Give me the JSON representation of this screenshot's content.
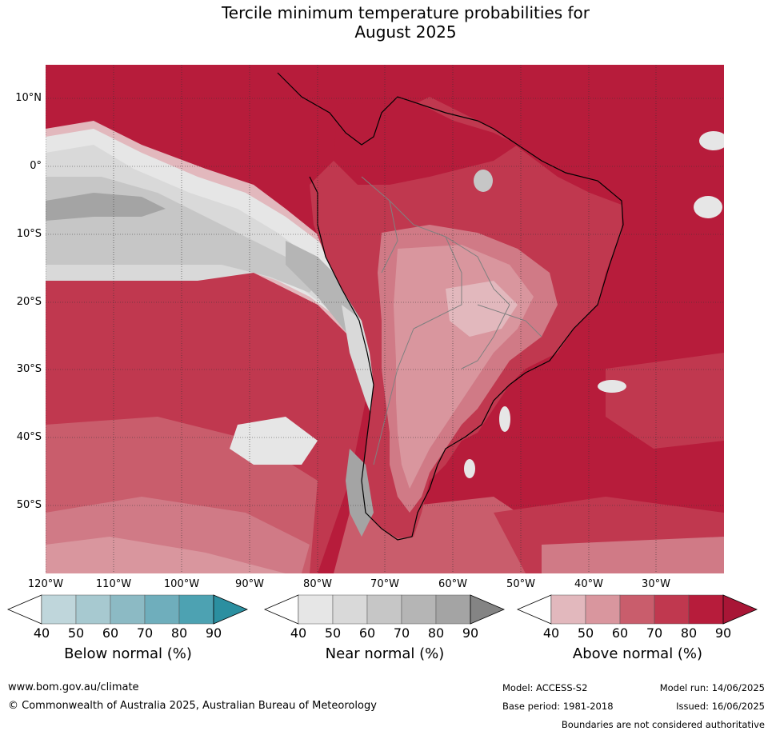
{
  "title_line1": "Tercile minimum temperature probabilities for",
  "title_line2": "August 2025",
  "map": {
    "lat_labels": [
      "10°N",
      "0°",
      "10°S",
      "20°S",
      "30°S",
      "40°S",
      "50°S"
    ],
    "lon_labels": [
      "120°W",
      "110°W",
      "100°W",
      "90°W",
      "80°W",
      "70°W",
      "60°W",
      "50°W",
      "40°W",
      "30°W"
    ],
    "colors": {
      "above_90": "#b71c3b",
      "above_80": "#c0384f",
      "above_70": "#c95d6c",
      "above_60": "#d07a86",
      "above_50": "#d9969e",
      "above_40": "#e2b8bd",
      "near_40": "#e6e6e6",
      "near_50": "#d9d9d9",
      "near_60": "#c6c6c6",
      "near_70": "#b5b5b5",
      "near_80": "#a4a4a4",
      "coast": "#000000",
      "border": "#808080",
      "grid": "#333333"
    }
  },
  "colorbars": [
    {
      "label": "Below normal (%)",
      "ticks": [
        "40",
        "50",
        "60",
        "70",
        "80",
        "90"
      ],
      "colors": [
        "#ffffff",
        "#bfd6db",
        "#a7c9d0",
        "#8cbac4",
        "#6faebc",
        "#4da2b2",
        "#2b8fa0"
      ]
    },
    {
      "label": "Near normal (%)",
      "ticks": [
        "40",
        "50",
        "60",
        "70",
        "80",
        "90"
      ],
      "colors": [
        "#ffffff",
        "#e6e6e6",
        "#d9d9d9",
        "#c6c6c6",
        "#b5b5b5",
        "#a4a4a4",
        "#848484"
      ]
    },
    {
      "label": "Above normal (%)",
      "ticks": [
        "40",
        "50",
        "60",
        "70",
        "80",
        "90"
      ],
      "colors": [
        "#ffffff",
        "#e2b8bd",
        "#d9969e",
        "#c95d6c",
        "#c0384f",
        "#b71c3b",
        "#a81636"
      ]
    }
  ],
  "footer": {
    "website": "www.bom.gov.au/climate",
    "copyright": "© Commonwealth of Australia 2025, Australian Bureau of Meteorology",
    "model": "Model: ACCESS-S2",
    "base_period": "Base period: 1981-2018",
    "model_run": "Model run: 14/06/2025",
    "issued": "Issued: 16/06/2025",
    "disclaimer": "Boundaries are not considered authoritative"
  }
}
